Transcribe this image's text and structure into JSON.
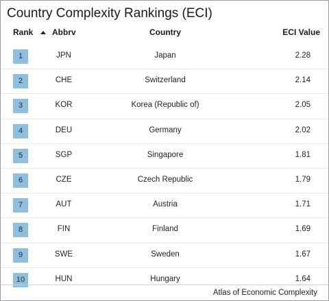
{
  "title": "Country Complexity Rankings (ECI)",
  "columns": {
    "rank": "Rank",
    "abbrv": "Abbrv",
    "country": "Country",
    "eci": "ECI Value"
  },
  "sort": {
    "column": "Rank",
    "direction": "ascending",
    "icon": "sort-ascending-icon"
  },
  "rows": [
    {
      "rank": "1",
      "abbr": "JPN",
      "country": "Japan",
      "eci": "2.28"
    },
    {
      "rank": "2",
      "abbr": "CHE",
      "country": "Switzerland",
      "eci": "2.14"
    },
    {
      "rank": "3",
      "abbr": "KOR",
      "country": "Korea (Republic of)",
      "eci": "2.05"
    },
    {
      "rank": "4",
      "abbr": "DEU",
      "country": "Germany",
      "eci": "2.02"
    },
    {
      "rank": "5",
      "abbr": "SGP",
      "country": "Singapore",
      "eci": "1.81"
    },
    {
      "rank": "6",
      "abbr": "CZE",
      "country": "Czech Republic",
      "eci": "1.79"
    },
    {
      "rank": "7",
      "abbr": "AUT",
      "country": "Austria",
      "eci": "1.71"
    },
    {
      "rank": "8",
      "abbr": "FIN",
      "country": "Finland",
      "eci": "1.69"
    },
    {
      "rank": "9",
      "abbr": "SWE",
      "country": "Sweden",
      "eci": "1.67"
    },
    {
      "rank": "10",
      "abbr": "HUN",
      "country": "Hungary",
      "eci": "1.64"
    }
  ],
  "footer": "Atlas of Economic Complexity",
  "colors": {
    "rank_badge": "#8fbfdd",
    "border": "#9a9a9a",
    "row_divider": "#e6e6e6"
  }
}
